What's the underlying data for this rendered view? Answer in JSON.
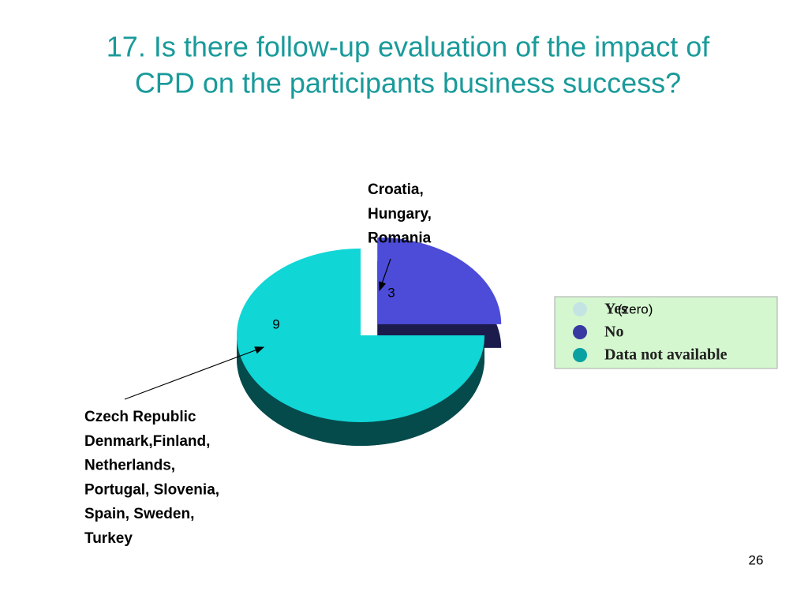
{
  "chart_data": {
    "type": "pie",
    "title": [
      "17. Is there follow-up evaluation of the impact of",
      "CPD on the participants business success?"
    ],
    "categories": [
      "Yes",
      "No",
      "Data not available"
    ],
    "values": [
      0,
      3,
      9
    ],
    "colors": [
      "#c4e4e4",
      "#4c4cd8",
      "#10d6d6"
    ],
    "legend_note": "(zero)",
    "annotations": [
      [
        "Croatia,",
        "Hungary,",
        "Romania"
      ],
      [
        "Czech Republic",
        "Denmark,Finland,",
        "Netherlands,",
        "Portugal, Slovenia,",
        "Spain, Sweden,",
        "Turkey"
      ]
    ]
  },
  "slide": {
    "page_number": "26"
  }
}
